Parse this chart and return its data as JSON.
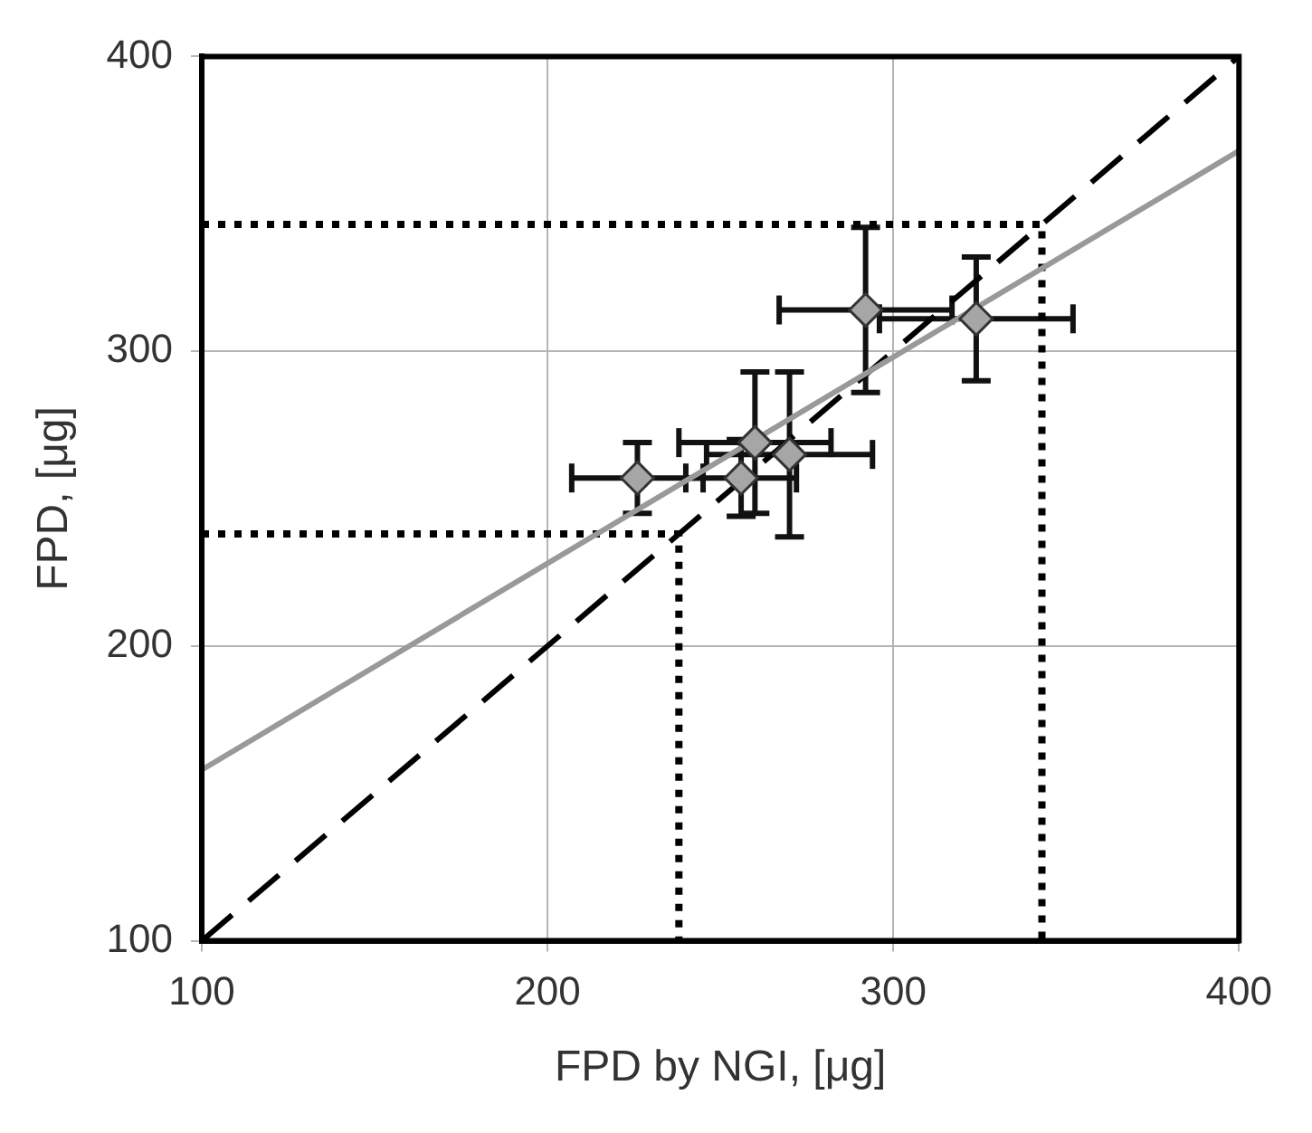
{
  "chart_data": {
    "type": "scatter",
    "xlabel": "FPD by NGI, [μg]",
    "ylabel": "FPD, [μg]",
    "xlim": [
      100,
      400
    ],
    "ylim": [
      100,
      400
    ],
    "xticks": [
      100,
      200,
      300,
      400
    ],
    "yticks": [
      100,
      200,
      300,
      400
    ],
    "grid": true,
    "legend": false,
    "series": [
      {
        "type": "line",
        "color": "#999999",
        "line_style": "solid",
        "marker": "none",
        "x": [
          100,
          400
        ],
        "values": [
          158,
          368
        ]
      },
      {
        "type": "line",
        "color": "#000000",
        "line_style": "dashed",
        "marker": "none",
        "x": [
          100,
          400
        ],
        "values": [
          100,
          400
        ]
      },
      {
        "type": "line",
        "color": "#000000",
        "line_style": "dotted",
        "marker": "none",
        "x": [
          100,
          238,
          238
        ],
        "values": [
          238,
          238,
          100
        ]
      },
      {
        "type": "line",
        "color": "#000000",
        "line_style": "dotted",
        "marker": "none",
        "x": [
          100,
          343,
          343
        ],
        "values": [
          343,
          343,
          100
        ]
      },
      {
        "type": "scatter",
        "color": "#a6a6a6",
        "marker": "diamond",
        "x": [
          226,
          256,
          260,
          270,
          292,
          324
        ],
        "values": [
          257,
          257,
          269,
          265,
          314,
          311
        ],
        "errors": [
          12,
          13,
          24,
          28,
          28,
          21
        ],
        "xerrors": [
          19,
          16,
          22,
          24,
          25,
          28
        ]
      }
    ]
  }
}
